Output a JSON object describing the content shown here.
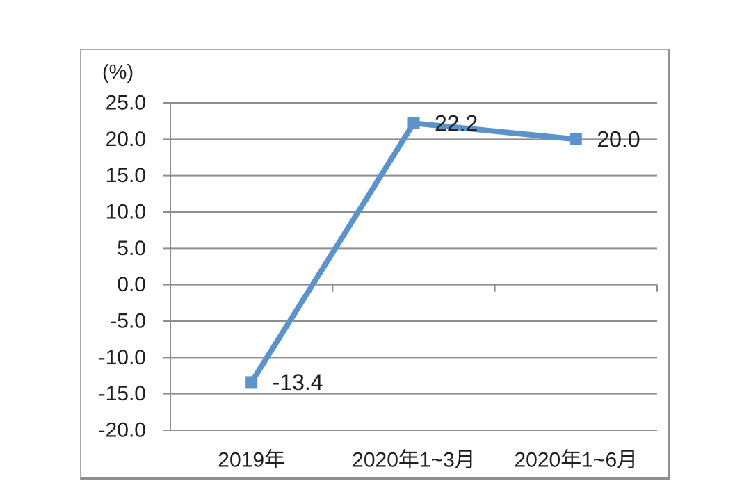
{
  "chart_data": {
    "type": "line",
    "title": "",
    "ylabel": "(%)",
    "xlabel": "",
    "categories": [
      "2019年",
      "2020年1~3月",
      "2020年1~6月"
    ],
    "series": [
      {
        "name": "series-1",
        "values": [
          -13.4,
          22.2,
          20.0
        ]
      }
    ],
    "data_labels": [
      "-13.4",
      "22.2",
      "20.0"
    ],
    "ytick_labels": [
      "25.0",
      "20.0",
      "15.0",
      "10.0",
      "5.0",
      "0.0",
      "-5.0",
      "-10.0",
      "-15.0",
      "-20.0"
    ],
    "yticks": [
      25.0,
      20.0,
      15.0,
      10.0,
      5.0,
      0.0,
      -5.0,
      -10.0,
      -15.0,
      -20.0
    ],
    "ylim": [
      -20.0,
      25.0
    ],
    "zero_baseline": 0.0,
    "grid": true,
    "legend_position": "none",
    "marker": "square",
    "colors": {
      "line": "#5b93cb",
      "marker": "#5b93cb",
      "grid": "#8e8e8e",
      "axis": "#8e8e8e",
      "text": "#1f1f1f",
      "frame_border": "#a8a8a8",
      "background": "#ffffff"
    }
  }
}
